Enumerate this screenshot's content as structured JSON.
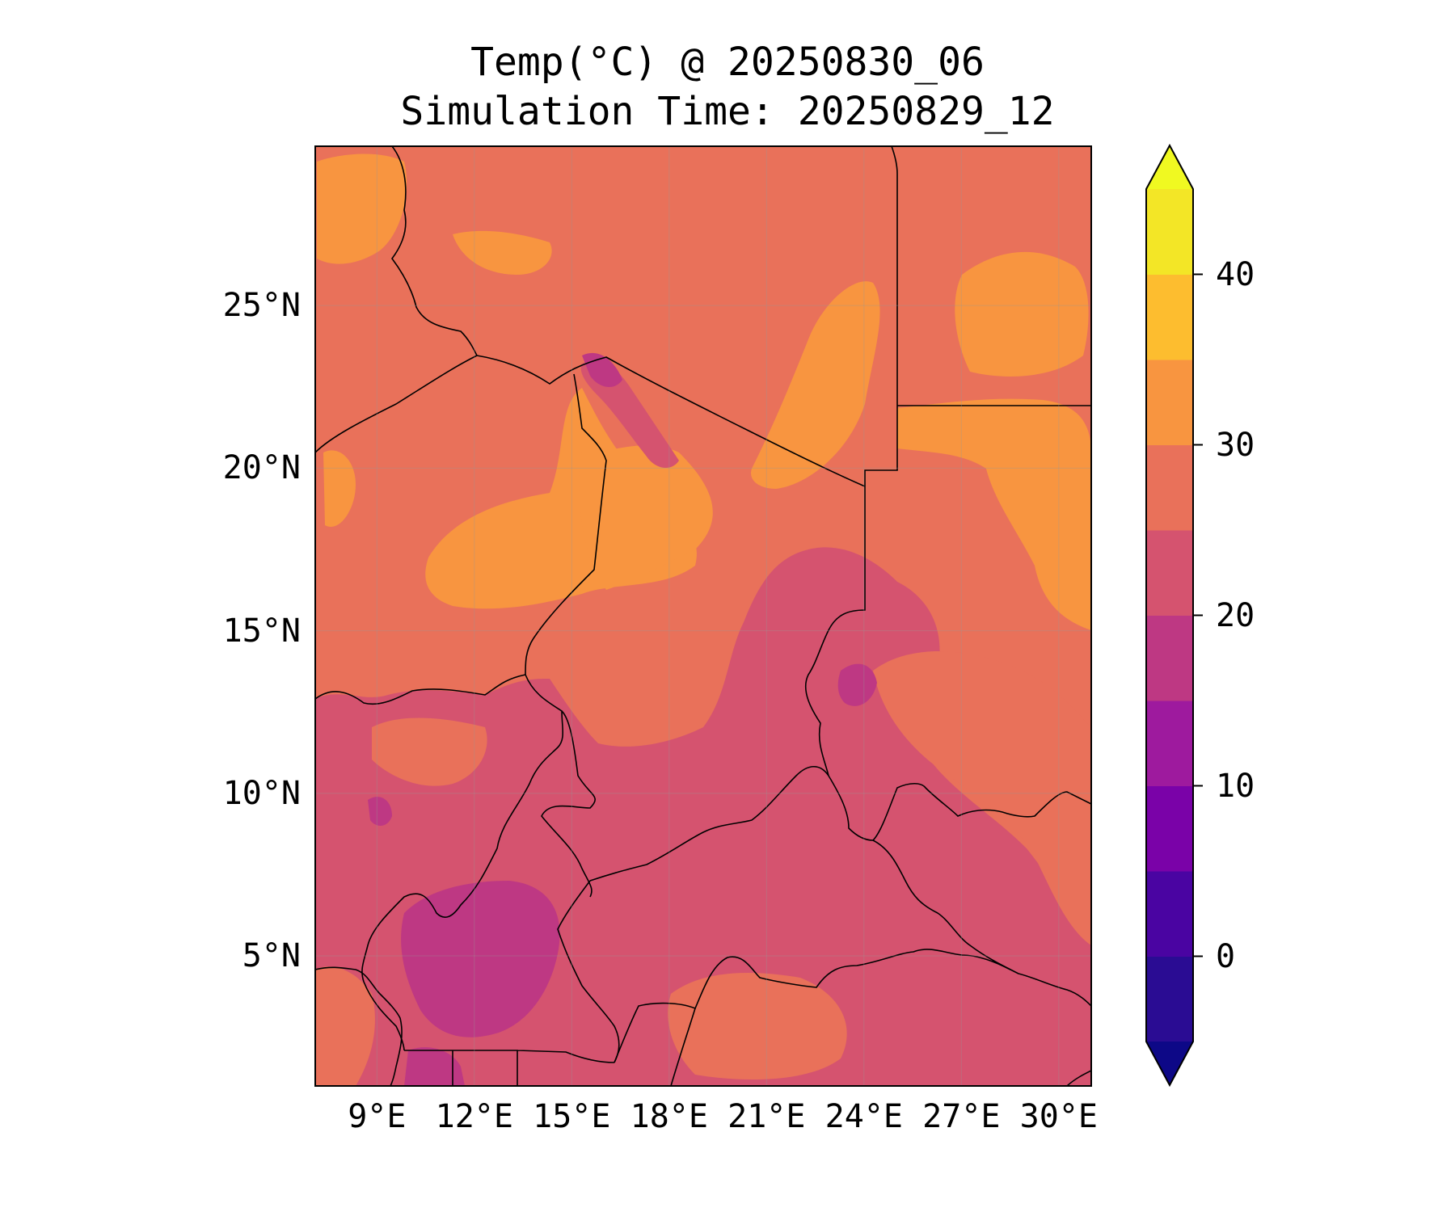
{
  "map": {
    "title_line1": "Temp(°C) @ 20250830_06",
    "title_line2": "Simulation Time: 20250829_12",
    "lon_ticks": [
      "9°E",
      "12°E",
      "15°E",
      "18°E",
      "21°E",
      "24°E",
      "27°E",
      "30°E"
    ],
    "lat_ticks": [
      "25°N",
      "20°N",
      "15°N",
      "10°N",
      "5°N"
    ],
    "extent": {
      "lon_min": 7.1,
      "lon_max": 31.0,
      "lat_min": 1.0,
      "lat_max": 29.9
    }
  },
  "colorbar": {
    "levels": [
      -5,
      0,
      5,
      10,
      15,
      20,
      25,
      30,
      35,
      40,
      45
    ],
    "colors": [
      "#2a0c93",
      "#4a04a2",
      "#7a02a8",
      "#9e1a9e",
      "#be3883",
      "#d5536f",
      "#e9715a",
      "#f89540",
      "#fdbd2f",
      "#f3e626"
    ],
    "under_color": "#0d0887",
    "over_color": "#f0f921",
    "tick_labels": [
      "0",
      "10",
      "20",
      "30",
      "40"
    ],
    "tick_values": [
      0,
      10,
      20,
      30,
      40
    ]
  }
}
